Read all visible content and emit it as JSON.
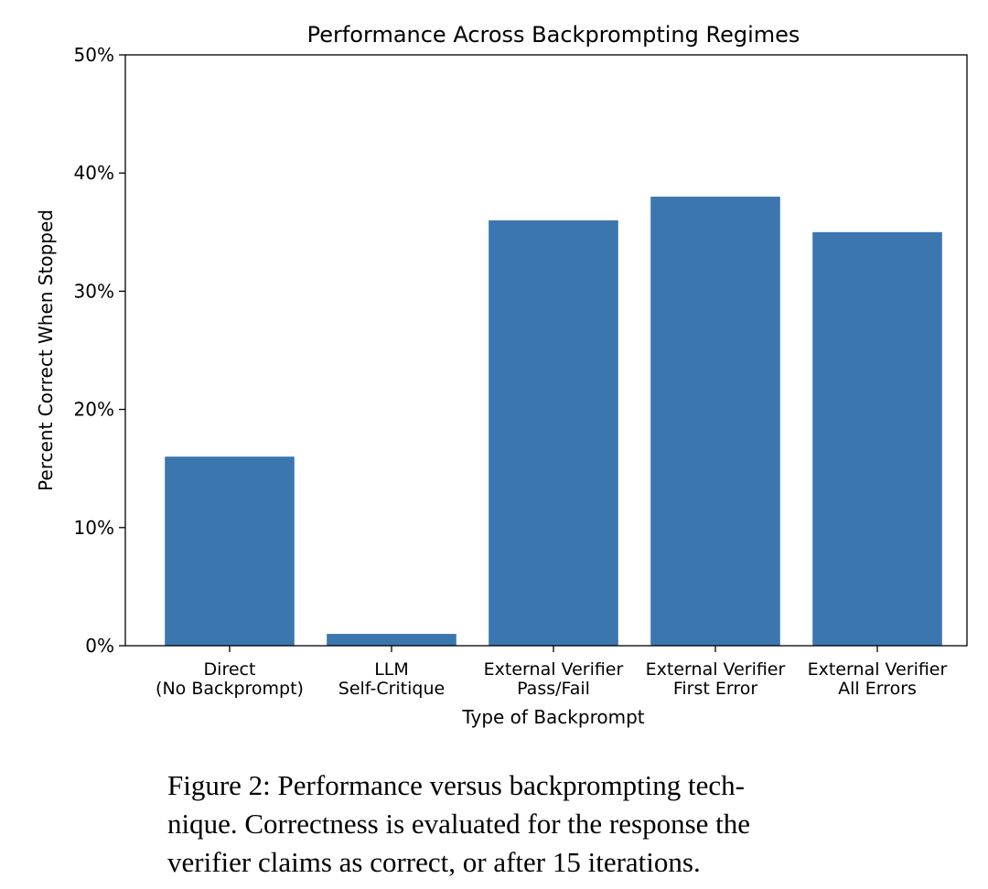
{
  "chart_data": {
    "type": "bar",
    "title": "Performance Across Backprompting Regimes",
    "xlabel": "Type of Backprompt",
    "ylabel": "Percent Correct When Stopped",
    "categories": [
      "Direct\n(No Backprompt)",
      "LLM\nSelf-Critique",
      "External Verifier\nPass/Fail",
      "External Verifier\nFirst Error",
      "External Verifier\nAll Errors"
    ],
    "values": [
      16,
      1,
      36,
      38,
      35
    ],
    "color": "#3b76af",
    "ylim": [
      0,
      50
    ],
    "yticks": [
      {
        "value": 0,
        "label": "0%"
      },
      {
        "value": 10,
        "label": "10%"
      },
      {
        "value": 20,
        "label": "20%"
      },
      {
        "value": 30,
        "label": "30%"
      },
      {
        "value": 40,
        "label": "40%"
      },
      {
        "value": 50,
        "label": "50%"
      }
    ]
  },
  "caption": {
    "lines": [
      "Figure 2: Performance versus backprompting tech-",
      "nique. Correctness is evaluated for the response the",
      "verifier claims as correct, or after 15 iterations."
    ]
  }
}
